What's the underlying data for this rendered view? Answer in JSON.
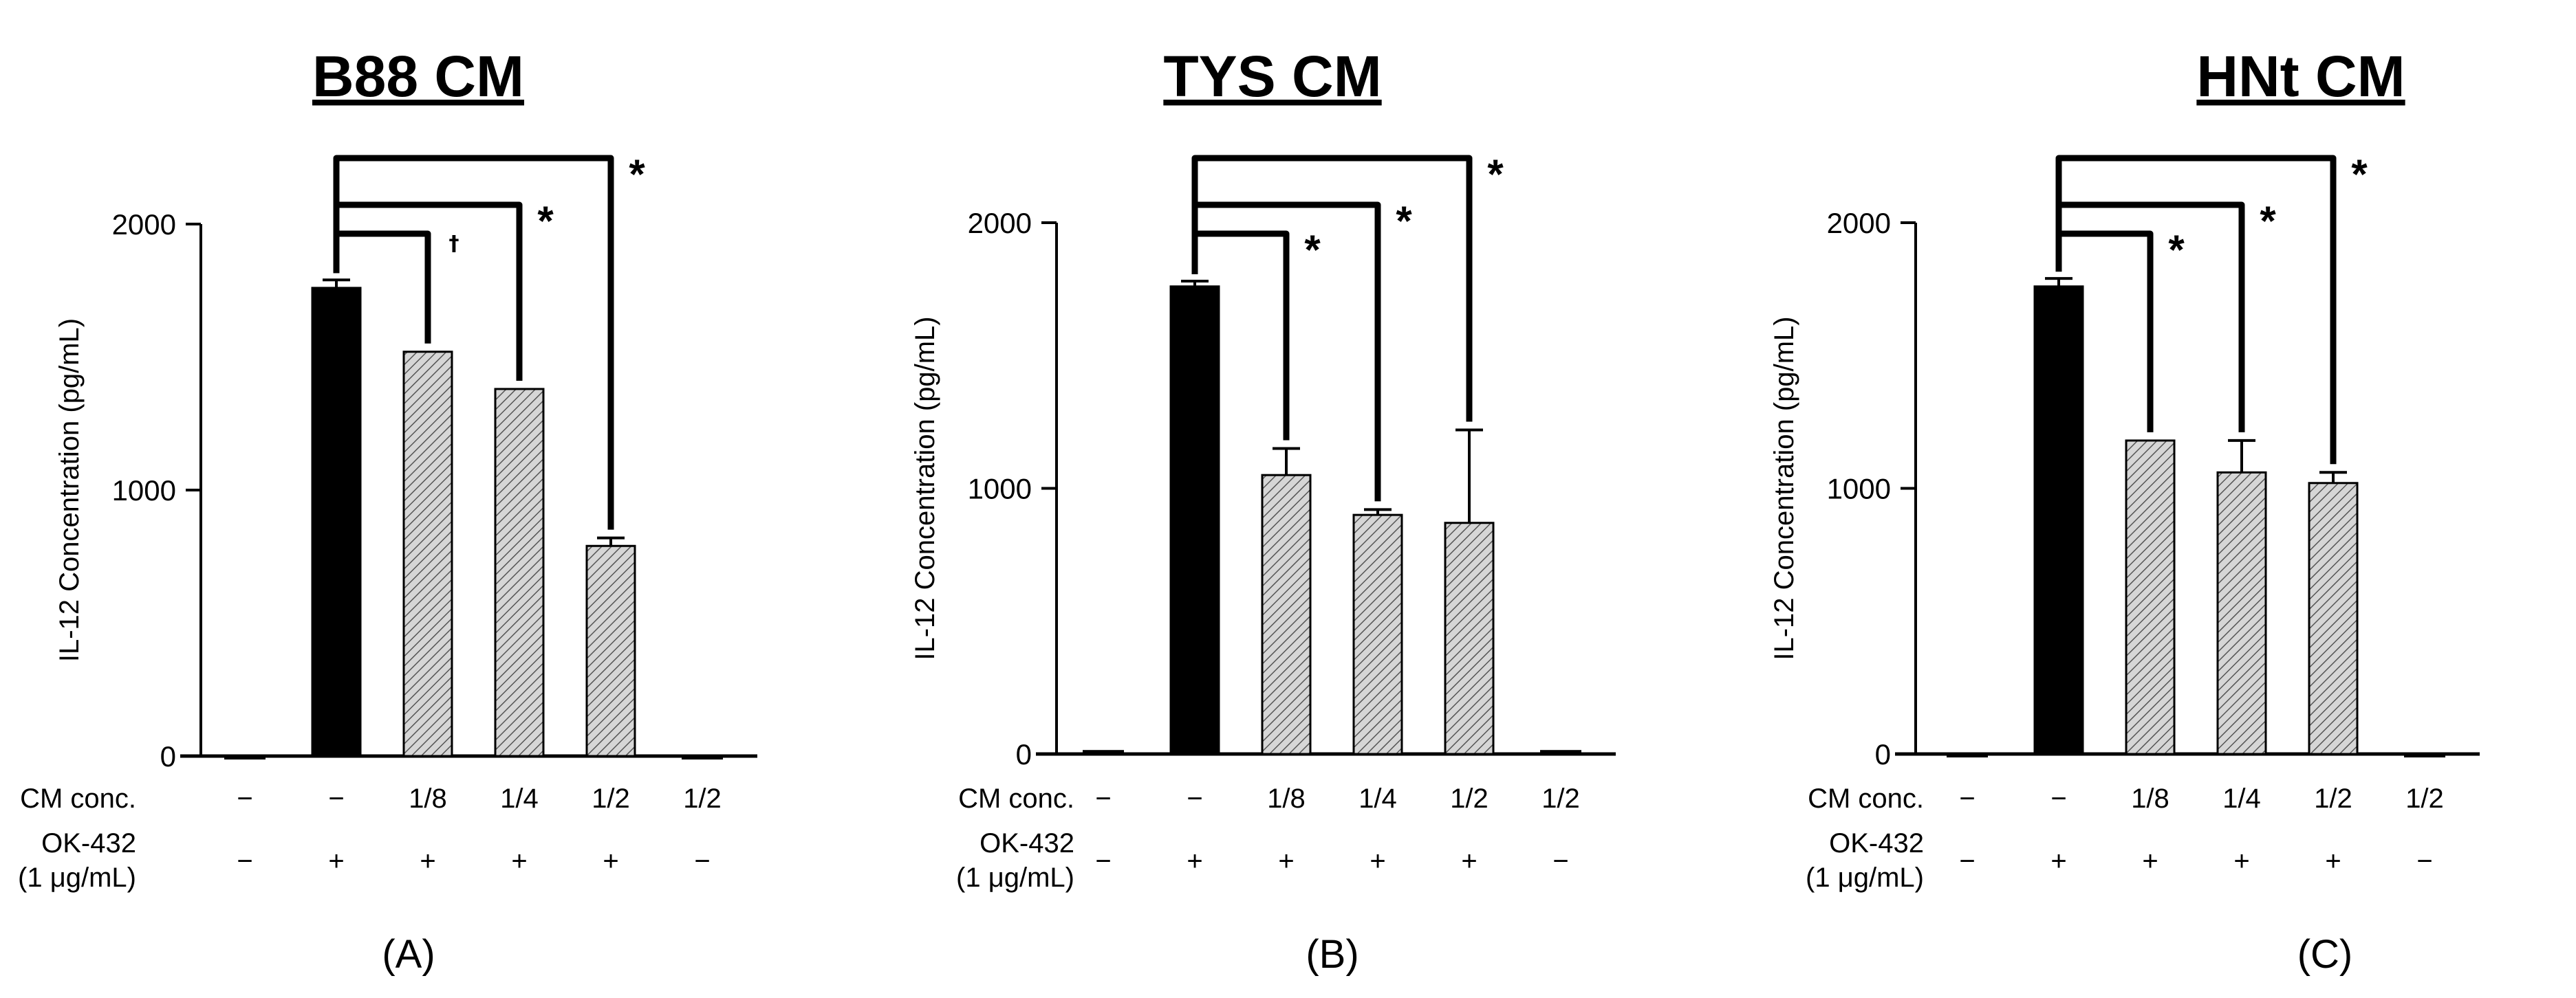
{
  "colors": {
    "control": "#000000",
    "treated": "#cfcfcf",
    "hatch": "#555555",
    "axis": "#000000"
  },
  "row_labels": {
    "cm": "CM conc.",
    "ok_line1": "OK-432",
    "ok_line2": "(1 μg/mL)"
  },
  "chart_data": [
    {
      "type": "bar",
      "title": "B88 CM",
      "panel_label": "(A)",
      "ylabel": "IL-12 Concentration (pg/mL)",
      "ylim": [
        0,
        2000
      ],
      "yticks": [
        0,
        1000,
        2000
      ],
      "cm_conc": [
        "−",
        "−",
        "1/8",
        "1/4",
        "1/2",
        "1/2"
      ],
      "ok432": [
        "−",
        "+",
        "+",
        "+",
        "+",
        "−"
      ],
      "values": [
        0,
        1760,
        1520,
        1380,
        790,
        0
      ],
      "errors": [
        0,
        30,
        0,
        0,
        30,
        0
      ],
      "comparisons": [
        {
          "from": 1,
          "to": 2,
          "mark": "†"
        },
        {
          "from": 1,
          "to": 3,
          "mark": "*"
        },
        {
          "from": 1,
          "to": 4,
          "mark": "*"
        }
      ]
    },
    {
      "type": "bar",
      "title": "TYS CM",
      "panel_label": "(B)",
      "ylabel": "IL-12 Concentration (pg/mL)",
      "ylim": [
        0,
        2000
      ],
      "yticks": [
        0,
        1000,
        2000
      ],
      "cm_conc": [
        "−",
        "−",
        "1/8",
        "1/4",
        "1/2",
        "1/2"
      ],
      "ok432": [
        "−",
        "+",
        "+",
        "+",
        "+",
        "−"
      ],
      "values": [
        15,
        1760,
        1050,
        900,
        870,
        15
      ],
      "errors": [
        0,
        20,
        100,
        20,
        350,
        0
      ],
      "comparisons": [
        {
          "from": 1,
          "to": 2,
          "mark": "*"
        },
        {
          "from": 1,
          "to": 3,
          "mark": "*"
        },
        {
          "from": 1,
          "to": 4,
          "mark": "*"
        }
      ]
    },
    {
      "type": "bar",
      "title": "HNt CM",
      "panel_label": "(C)",
      "ylabel": "IL-12 Concentration (pg/mL)",
      "ylim": [
        0,
        2000
      ],
      "yticks": [
        0,
        1000,
        2000
      ],
      "cm_conc": [
        "−",
        "−",
        "1/8",
        "1/4",
        "1/2",
        "1/2"
      ],
      "ok432": [
        "−",
        "+",
        "+",
        "+",
        "+",
        "−"
      ],
      "values": [
        0,
        1760,
        1180,
        1060,
        1020,
        0
      ],
      "errors": [
        0,
        30,
        0,
        120,
        40,
        0
      ],
      "comparisons": [
        {
          "from": 1,
          "to": 2,
          "mark": "*"
        },
        {
          "from": 1,
          "to": 3,
          "mark": "*"
        },
        {
          "from": 1,
          "to": 4,
          "mark": "*"
        }
      ]
    }
  ]
}
